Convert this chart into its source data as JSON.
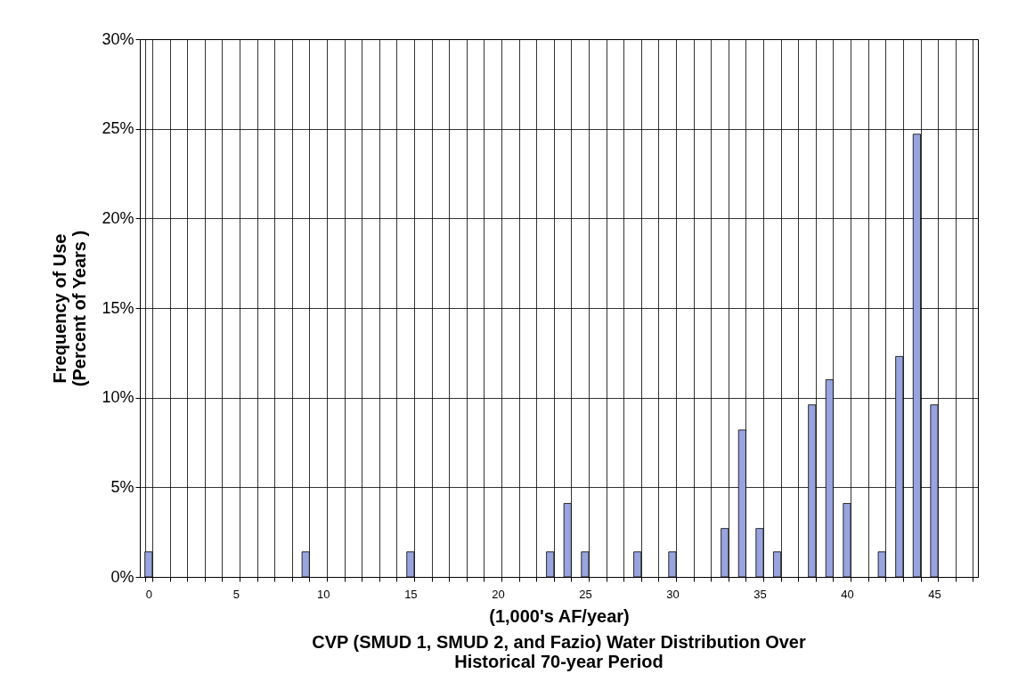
{
  "chart_data": {
    "type": "bar",
    "title": "CVP (SMUD 1, SMUD 2, and Fazio)  Water Distribution Over Historical 70-year Period",
    "xlabel": "(1,000's AF/year)",
    "ylabel": "Frequency of Use (Percent of Years )",
    "categories": [
      "0",
      null,
      null,
      null,
      null,
      "5",
      null,
      null,
      null,
      null,
      "10",
      null,
      null,
      null,
      null,
      "15",
      null,
      null,
      null,
      null,
      "20",
      null,
      null,
      null,
      null,
      "25",
      null,
      null,
      null,
      null,
      "30",
      null,
      null,
      null,
      null,
      "35",
      null,
      null,
      null,
      null,
      "40",
      null,
      null,
      null,
      null,
      "45",
      null,
      null
    ],
    "values": [
      1.4,
      0,
      0,
      0,
      0,
      0,
      0,
      0,
      0,
      1.4,
      0,
      0,
      0,
      0,
      0,
      1.4,
      0,
      0,
      0,
      0,
      0,
      0,
      0,
      1.4,
      4.1,
      1.4,
      0,
      0,
      1.4,
      0,
      1.4,
      0,
      0,
      2.7,
      8.2,
      2.7,
      1.4,
      0,
      9.6,
      11.0,
      4.1,
      0,
      1.4,
      12.3,
      24.7,
      9.6,
      0,
      0
    ],
    "color": "#99a3dd",
    "ylim": [
      0,
      30
    ],
    "yticks": [
      {
        "value": 0,
        "label": "0%"
      },
      {
        "value": 5,
        "label": "5%"
      },
      {
        "value": 10,
        "label": "10%"
      },
      {
        "value": 15,
        "label": "15%"
      },
      {
        "value": 20,
        "label": "20%"
      },
      {
        "value": 25,
        "label": "25%"
      },
      {
        "value": 30,
        "label": "30%"
      }
    ],
    "grid": true
  }
}
